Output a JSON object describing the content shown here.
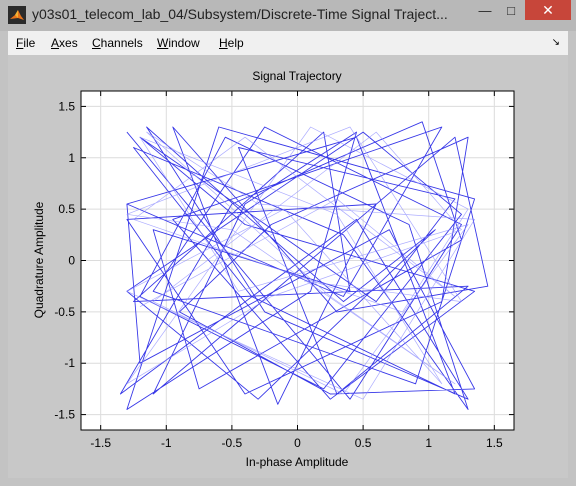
{
  "window": {
    "title": "y03s01_telecom_lab_04/Subsystem/Discrete-Time Signal Traject...",
    "minimize_glyph": "—",
    "maximize_glyph": "□",
    "close_glyph": "✕"
  },
  "menu": {
    "items": [
      {
        "label": "File",
        "mnemonic": "F"
      },
      {
        "label": "Axes",
        "mnemonic": "A"
      },
      {
        "label": "Channels",
        "mnemonic": "C"
      },
      {
        "label": "Window",
        "mnemonic": "W"
      },
      {
        "label": "Help",
        "mnemonic": "H"
      }
    ],
    "dock_glyph": "↘"
  },
  "colors": {
    "trace": "#2222e6",
    "trace_faint": "#8a8aff"
  },
  "chart_data": {
    "type": "line",
    "title": "Signal Trajectory",
    "xlabel": "In-phase Amplitude",
    "ylabel": "Quadrature Amplitude",
    "xlim": [
      -1.65,
      1.65
    ],
    "ylim": [
      -1.65,
      1.65
    ],
    "xticks": [
      -1.5,
      -1,
      -0.5,
      0,
      0.5,
      1,
      1.5
    ],
    "yticks": [
      -1.5,
      -1,
      -0.5,
      0,
      0.5,
      1,
      1.5
    ],
    "xtick_labels": [
      "-1.5",
      "-1",
      "-0.5",
      "0",
      "0.5",
      "1",
      "1.5"
    ],
    "ytick_labels": [
      "-1.5",
      "-1",
      "-0.5",
      "0",
      "0.5",
      "1",
      "1.5"
    ],
    "grid": true,
    "series": [
      {
        "x": [
          -1.3,
          0.4,
          1.25,
          -0.25,
          -1.1,
          0.9,
          1.35,
          -0.6,
          -1.3,
          0.1,
          0.45,
          -0.4,
          -1.1,
          1.2,
          1.45,
          0.3,
          -0.95,
          -0.15,
          0.6,
          -1.3,
          -0.4,
          1.1,
          1.3,
          -0.2,
          -0.9,
          0.25,
          1.35,
          0.7,
          -1.2,
          -1.3,
          0.45,
          1.2,
          -0.35,
          -1.25,
          0.35,
          1.3,
          0.85,
          -0.55,
          -1.2,
          0.2,
          1.25,
          0.5,
          -1.3,
          -0.3,
          1.05,
          0.35,
          -1.15,
          -0.25,
          1.3,
          0.45,
          -1.35,
          -0.5,
          0.95,
          1.25,
          -0.75,
          -1.1,
          0.4,
          0.2,
          -1.25,
          1.3,
          0.3,
          -0.45,
          1.2,
          0.6,
          -1.2,
          -0.4,
          1.35,
          0.25,
          -0.95,
          1.1,
          0.35,
          -1.3
        ],
        "y": [
          1.25,
          -1.35,
          0.35,
          1.3,
          -0.3,
          -1.2,
          0.6,
          1.3,
          -1.45,
          -0.3,
          1.25,
          0.55,
          -1.3,
          1.2,
          -0.25,
          -0.5,
          1.3,
          -1.4,
          0.55,
          0.4,
          -1.3,
          -0.4,
          1.2,
          0.35,
          -0.5,
          -1.3,
          -1.25,
          0.3,
          -1.0,
          0.55,
          1.2,
          -1.3,
          -0.35,
          1.1,
          0.25,
          -1.45,
          0.35,
          1.2,
          -0.35,
          -1.25,
          0.45,
          1.25,
          -0.3,
          -1.35,
          0.3,
          -0.4,
          1.3,
          -0.5,
          -1.35,
          0.4,
          -1.3,
          0.55,
          1.35,
          0.2,
          -1.25,
          0.3,
          -0.3,
          1.25,
          -0.4,
          -0.25,
          -1.3,
          1.1,
          0.6,
          -0.4,
          1.2,
          0.35,
          -0.3,
          -1.35,
          0.4,
          1.3,
          -0.35,
          0.55
        ]
      },
      {
        "x": [
          -1.2,
          0.3,
          1.2,
          -0.4,
          -1.25,
          0.8,
          1.3,
          0.1,
          -1.3,
          -0.2,
          1.25,
          0.6,
          -1.1,
          0.35,
          1.3,
          -0.45,
          -1.2,
          0.3,
          1.1,
          -0.1,
          -1.3,
          0.5,
          1.35,
          -0.3,
          -1.15,
          0.25,
          1.2,
          -0.5,
          -1.3,
          0.4,
          1.25,
          0.05
        ],
        "y": [
          -0.45,
          0.6,
          -0.35,
          1.2,
          0.4,
          -0.5,
          0.5,
          1.3,
          -1.2,
          -0.35,
          0.3,
          1.25,
          -0.4,
          -1.3,
          0.35,
          -0.3,
          1.2,
          0.45,
          -1.2,
          0.5,
          -0.3,
          -1.35,
          0.4,
          0.55,
          1.25,
          -0.35,
          -1.2,
          0.3,
          0.45,
          1.3,
          -0.4,
          -0.2
        ]
      }
    ]
  }
}
